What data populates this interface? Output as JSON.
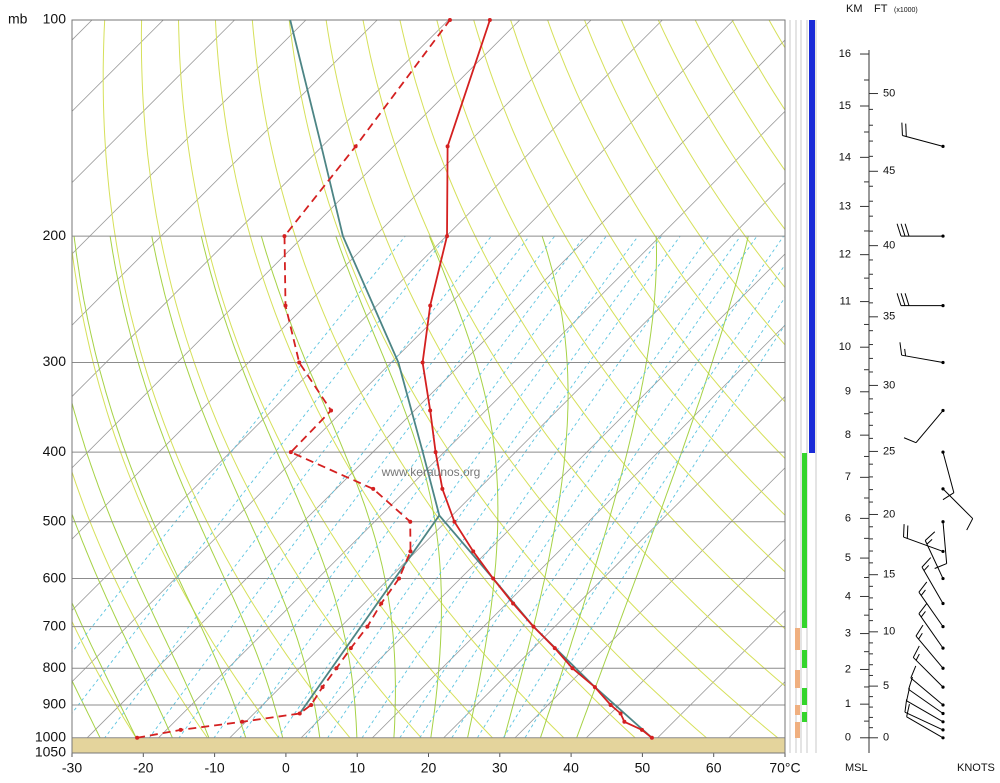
{
  "chart_data": {
    "type": "skewt",
    "y_label": "mb",
    "watermark": "www.keraunos.org",
    "ylim": [
      1050,
      100
    ],
    "yticks": [
      100,
      200,
      300,
      400,
      500,
      600,
      700,
      800,
      900,
      1000,
      1050
    ],
    "xlim": [
      -30,
      70
    ],
    "xticks": [
      -30,
      -20,
      -10,
      0,
      10,
      20,
      30,
      40,
      50,
      60,
      {
        "value": 70,
        "label": "70°C"
      }
    ],
    "grid": true,
    "sounding": {
      "pressure": [
        1000,
        975,
        950,
        925,
        900,
        850,
        800,
        750,
        700,
        650,
        600,
        550,
        500,
        450,
        400,
        350,
        300,
        250,
        200,
        150,
        100
      ],
      "temperature": [
        49.2,
        46.7,
        43.1,
        41.4,
        38.8,
        34.1,
        28.3,
        23.0,
        17.0,
        10.9,
        4.6,
        -2.0,
        -8.8,
        -15.1,
        -21.2,
        -27.8,
        -35.6,
        -42.5,
        -49.9,
        -62.4,
        -74.2
      ],
      "dewpoint": [
        -23.0,
        -18.0,
        -10.5,
        -3.6,
        -3.2,
        -4.1,
        -4.8,
        -5.6,
        -6.3,
        -7.6,
        -8.6,
        -10.8,
        -15.0,
        -24.8,
        -41.5,
        -41.7,
        -52.9,
        -62.8,
        -72.7,
        -75.3,
        -79.8
      ],
      "color": "#d42020"
    },
    "parcel": {
      "pressure": [
        1000,
        850,
        700,
        600,
        490,
        400,
        300,
        200,
        150,
        100
      ],
      "temperature": [
        49.2,
        34.1,
        17.0,
        4.6,
        -11.8,
        -23.0,
        -39.0,
        -64.5,
        -80.1,
        -102.2
      ],
      "color": "#4d8585"
    },
    "mixing_line": {
      "pressure": [
        925,
        490
      ],
      "temperature": [
        -3.6,
        -11.8
      ],
      "color": "#4d8585"
    },
    "winds": {
      "pressure": [
        1000,
        975,
        950,
        925,
        900,
        850,
        800,
        750,
        700,
        650,
        600,
        550,
        500,
        450,
        400,
        350,
        300,
        250,
        200,
        150
      ],
      "direction": [
        300,
        295,
        300,
        305,
        310,
        315,
        320,
        325,
        325,
        330,
        335,
        290,
        175,
        135,
        165,
        220,
        280,
        270,
        270,
        285
      ],
      "speed": [
        10,
        10,
        10,
        10,
        10,
        15,
        15,
        15,
        15,
        15,
        15,
        20,
        10,
        10,
        10,
        10,
        15,
        30,
        30,
        20
      ],
      "label": "KNOTS"
    },
    "height_axis": {
      "km_label": "KM",
      "ft_label": "FT",
      "ft_unit": "(x1000)",
      "base_label": "MSL",
      "km_ticks": [
        0,
        1,
        2,
        3,
        4,
        5,
        6,
        7,
        8,
        9,
        10,
        11,
        12,
        13,
        14,
        15,
        16
      ],
      "ft_ticks": [
        0,
        5,
        10,
        15,
        20,
        25,
        30,
        35,
        40,
        45,
        50
      ]
    }
  }
}
